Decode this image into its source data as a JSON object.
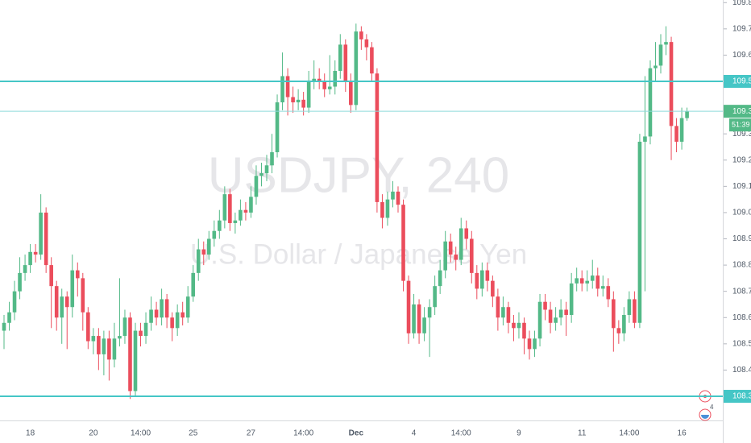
{
  "chart_data": {
    "type": "candlestick",
    "title": "USDJPY, 240",
    "subtitle": "U.S. Dollar / Japanese Yen",
    "categories": [
      null,
      null,
      null,
      null,
      null,
      "18",
      null,
      null,
      null,
      null,
      null,
      null,
      null,
      null,
      null,
      null,
      null,
      "20",
      null,
      null,
      null,
      null,
      null,
      null,
      null,
      null,
      "14:00",
      null,
      null,
      null,
      null,
      null,
      null,
      null,
      null,
      null,
      "25",
      null,
      null,
      null,
      null,
      null,
      null,
      null,
      null,
      null,
      null,
      "27",
      null,
      null,
      null,
      null,
      null,
      null,
      null,
      null,
      null,
      "14:00",
      null,
      null,
      null,
      null,
      null,
      null,
      null,
      null,
      null,
      "Dec",
      null,
      null,
      null,
      null,
      null,
      null,
      null,
      null,
      null,
      null,
      "4",
      null,
      null,
      null,
      null,
      null,
      null,
      null,
      null,
      "14:00",
      null,
      null,
      null,
      null,
      null,
      null,
      null,
      null,
      null,
      null,
      "9",
      null,
      null,
      null,
      null,
      null,
      null,
      null,
      null,
      null,
      null,
      null,
      "11",
      null,
      null,
      null,
      null,
      null,
      null,
      null,
      null,
      "14:00",
      null,
      null,
      null,
      null,
      null,
      null,
      null,
      null,
      null,
      "16",
      null
    ],
    "open": [
      108.55,
      108.58,
      108.62,
      108.7,
      108.77,
      108.8,
      108.85,
      108.84,
      109.0,
      108.8,
      108.72,
      108.6,
      108.68,
      108.64,
      108.78,
      108.75,
      108.62,
      108.51,
      108.53,
      108.46,
      108.52,
      108.44,
      108.52,
      108.53,
      108.6,
      108.32,
      108.55,
      108.53,
      108.58,
      108.63,
      108.6,
      108.67,
      108.6,
      108.56,
      108.62,
      108.6,
      108.68,
      108.77,
      108.86,
      108.84,
      108.9,
      108.93,
      108.97,
      109.07,
      108.96,
      108.97,
      109.01,
      109.0,
      109.06,
      109.14,
      109.15,
      109.18,
      109.23,
      109.42,
      109.52,
      109.44,
      109.42,
      109.43,
      109.4,
      109.5,
      109.51,
      109.5,
      109.47,
      109.48,
      109.54,
      109.64,
      109.5,
      109.41,
      109.69,
      109.66,
      109.63,
      109.53,
      109.04,
      108.98,
      109.05,
      109.08,
      109.03,
      108.74,
      108.54,
      108.65,
      108.54,
      108.6,
      108.64,
      108.72,
      108.78,
      108.89,
      108.84,
      108.82,
      108.94,
      108.9,
      108.77,
      108.71,
      108.78,
      108.74,
      108.68,
      108.6,
      108.64,
      108.58,
      108.56,
      108.58,
      108.52,
      108.48,
      108.52,
      108.66,
      108.63,
      108.58,
      108.6,
      108.63,
      108.61,
      108.73,
      108.75,
      108.73,
      108.74,
      108.76,
      108.71,
      108.72,
      108.67,
      108.56,
      108.54,
      108.61,
      108.67,
      108.58,
      109.27,
      109.29,
      109.55,
      109.56,
      109.64,
      109.65,
      109.33,
      109.27,
      109.36
    ],
    "high": [
      108.61,
      108.66,
      108.74,
      108.83,
      108.84,
      108.88,
      108.88,
      109.07,
      109.02,
      108.83,
      108.74,
      108.71,
      108.7,
      108.84,
      108.81,
      108.77,
      108.64,
      108.56,
      108.56,
      108.55,
      108.55,
      108.58,
      108.75,
      108.63,
      108.62,
      108.58,
      108.58,
      108.62,
      108.68,
      108.66,
      108.71,
      108.69,
      108.62,
      108.65,
      108.66,
      108.72,
      108.8,
      108.9,
      108.89,
      108.93,
      108.97,
      109.01,
      109.1,
      109.09,
      109.0,
      109.05,
      109.04,
      109.1,
      109.18,
      109.19,
      109.22,
      109.3,
      109.45,
      109.61,
      109.55,
      109.48,
      109.47,
      109.46,
      109.54,
      109.58,
      109.55,
      109.53,
      109.6,
      109.58,
      109.68,
      109.66,
      109.53,
      109.72,
      109.71,
      109.68,
      109.65,
      109.55,
      109.07,
      109.08,
      109.12,
      109.1,
      109.05,
      108.76,
      108.69,
      108.67,
      108.64,
      108.67,
      108.76,
      108.82,
      108.93,
      108.92,
      108.87,
      108.98,
      108.97,
      108.93,
      108.8,
      108.81,
      108.81,
      108.76,
      108.71,
      108.68,
      108.66,
      108.61,
      108.62,
      108.6,
      108.55,
      108.55,
      108.69,
      108.69,
      108.66,
      108.64,
      108.67,
      108.66,
      108.77,
      108.79,
      108.78,
      108.78,
      108.82,
      108.79,
      108.76,
      108.75,
      108.7,
      108.59,
      108.64,
      108.7,
      108.7,
      109.3,
      109.52,
      109.58,
      109.65,
      109.68,
      109.71,
      109.67,
      109.36,
      109.4,
      109.4
    ],
    "low": [
      108.48,
      108.55,
      108.59,
      108.67,
      108.74,
      108.77,
      108.81,
      108.82,
      108.77,
      108.56,
      108.55,
      108.5,
      108.48,
      108.6,
      108.68,
      108.55,
      108.48,
      108.46,
      108.4,
      108.38,
      108.36,
      108.41,
      108.49,
      108.5,
      108.29,
      108.3,
      108.49,
      108.5,
      108.55,
      108.57,
      108.57,
      108.56,
      108.51,
      108.53,
      108.57,
      108.58,
      108.66,
      108.74,
      108.8,
      108.82,
      108.87,
      108.9,
      108.94,
      108.93,
      108.92,
      108.95,
      108.97,
      108.98,
      109.03,
      109.1,
      109.12,
      109.15,
      109.21,
      109.39,
      109.37,
      109.38,
      109.39,
      109.37,
      109.38,
      109.47,
      109.47,
      109.44,
      109.45,
      109.45,
      109.51,
      109.46,
      109.38,
      109.39,
      109.62,
      109.58,
      109.5,
      109.0,
      108.94,
      108.95,
      109.02,
      109.0,
      108.7,
      108.5,
      108.52,
      108.5,
      108.51,
      108.45,
      108.61,
      108.69,
      108.75,
      108.81,
      108.78,
      108.8,
      108.86,
      108.73,
      108.67,
      108.68,
      108.7,
      108.64,
      108.55,
      108.57,
      108.54,
      108.51,
      108.52,
      108.46,
      108.44,
      108.45,
      108.49,
      108.59,
      108.54,
      108.55,
      108.57,
      108.53,
      108.58,
      108.7,
      108.7,
      108.7,
      108.71,
      108.68,
      108.68,
      108.64,
      108.47,
      108.5,
      108.51,
      108.58,
      108.56,
      108.56,
      108.7,
      109.26,
      109.5,
      109.53,
      109.6,
      109.2,
      109.23,
      109.24,
      109.35
    ],
    "close": [
      108.58,
      108.62,
      108.7,
      108.77,
      108.8,
      108.85,
      108.84,
      109.0,
      108.8,
      108.72,
      108.6,
      108.68,
      108.64,
      108.78,
      108.75,
      108.62,
      108.51,
      108.53,
      108.46,
      108.52,
      108.44,
      108.52,
      108.53,
      108.6,
      108.32,
      108.55,
      108.53,
      108.58,
      108.63,
      108.6,
      108.67,
      108.6,
      108.56,
      108.62,
      108.6,
      108.68,
      108.77,
      108.86,
      108.84,
      108.9,
      108.93,
      108.97,
      109.07,
      108.96,
      108.97,
      109.01,
      109.0,
      109.06,
      109.14,
      109.15,
      109.18,
      109.23,
      109.42,
      109.52,
      109.44,
      109.42,
      109.43,
      109.4,
      109.5,
      109.51,
      109.5,
      109.47,
      109.48,
      109.54,
      109.64,
      109.5,
      109.41,
      109.69,
      109.66,
      109.63,
      109.53,
      109.04,
      108.98,
      109.05,
      109.08,
      109.03,
      108.74,
      108.54,
      108.65,
      108.54,
      108.6,
      108.64,
      108.72,
      108.78,
      108.89,
      108.84,
      108.82,
      108.94,
      108.9,
      108.77,
      108.71,
      108.78,
      108.74,
      108.68,
      108.6,
      108.64,
      108.58,
      108.56,
      108.58,
      108.52,
      108.48,
      108.52,
      108.66,
      108.63,
      108.58,
      108.6,
      108.63,
      108.61,
      108.73,
      108.75,
      108.73,
      108.74,
      108.76,
      108.71,
      108.72,
      108.67,
      108.56,
      108.54,
      108.61,
      108.67,
      108.58,
      109.27,
      109.29,
      109.55,
      109.56,
      109.64,
      109.65,
      109.33,
      109.27,
      109.36,
      109.386
    ],
    "up_color": "#53b987",
    "down_color": "#eb4d5c",
    "ylim": [
      108.208,
      109.81
    ],
    "yticks": [
      {
        "value": 108.4,
        "label": "108.400"
      },
      {
        "value": 108.5,
        "label": "108.500"
      },
      {
        "value": 108.6,
        "label": "108.600"
      },
      {
        "value": 108.7,
        "label": "108.700"
      },
      {
        "value": 108.8,
        "label": "108.800"
      },
      {
        "value": 108.9,
        "label": "108.900"
      },
      {
        "value": 109.0,
        "label": "109.000"
      },
      {
        "value": 109.1,
        "label": "109.100"
      },
      {
        "value": 109.2,
        "label": "109.200"
      },
      {
        "value": 109.3,
        "label": "109.300"
      },
      {
        "value": 109.6,
        "label": "109.600"
      },
      {
        "value": 109.7,
        "label": "109.700"
      },
      {
        "value": 109.8,
        "label": "109.800"
      }
    ],
    "price_lines": [
      {
        "value": 109.5,
        "label": "109.500",
        "color": "#45c6c6"
      },
      {
        "value": 108.3,
        "label": "108.300",
        "color": "#45c6c6"
      }
    ],
    "last_price_color": "#53b987",
    "countdown": "51:39",
    "alert_badge": "4"
  }
}
